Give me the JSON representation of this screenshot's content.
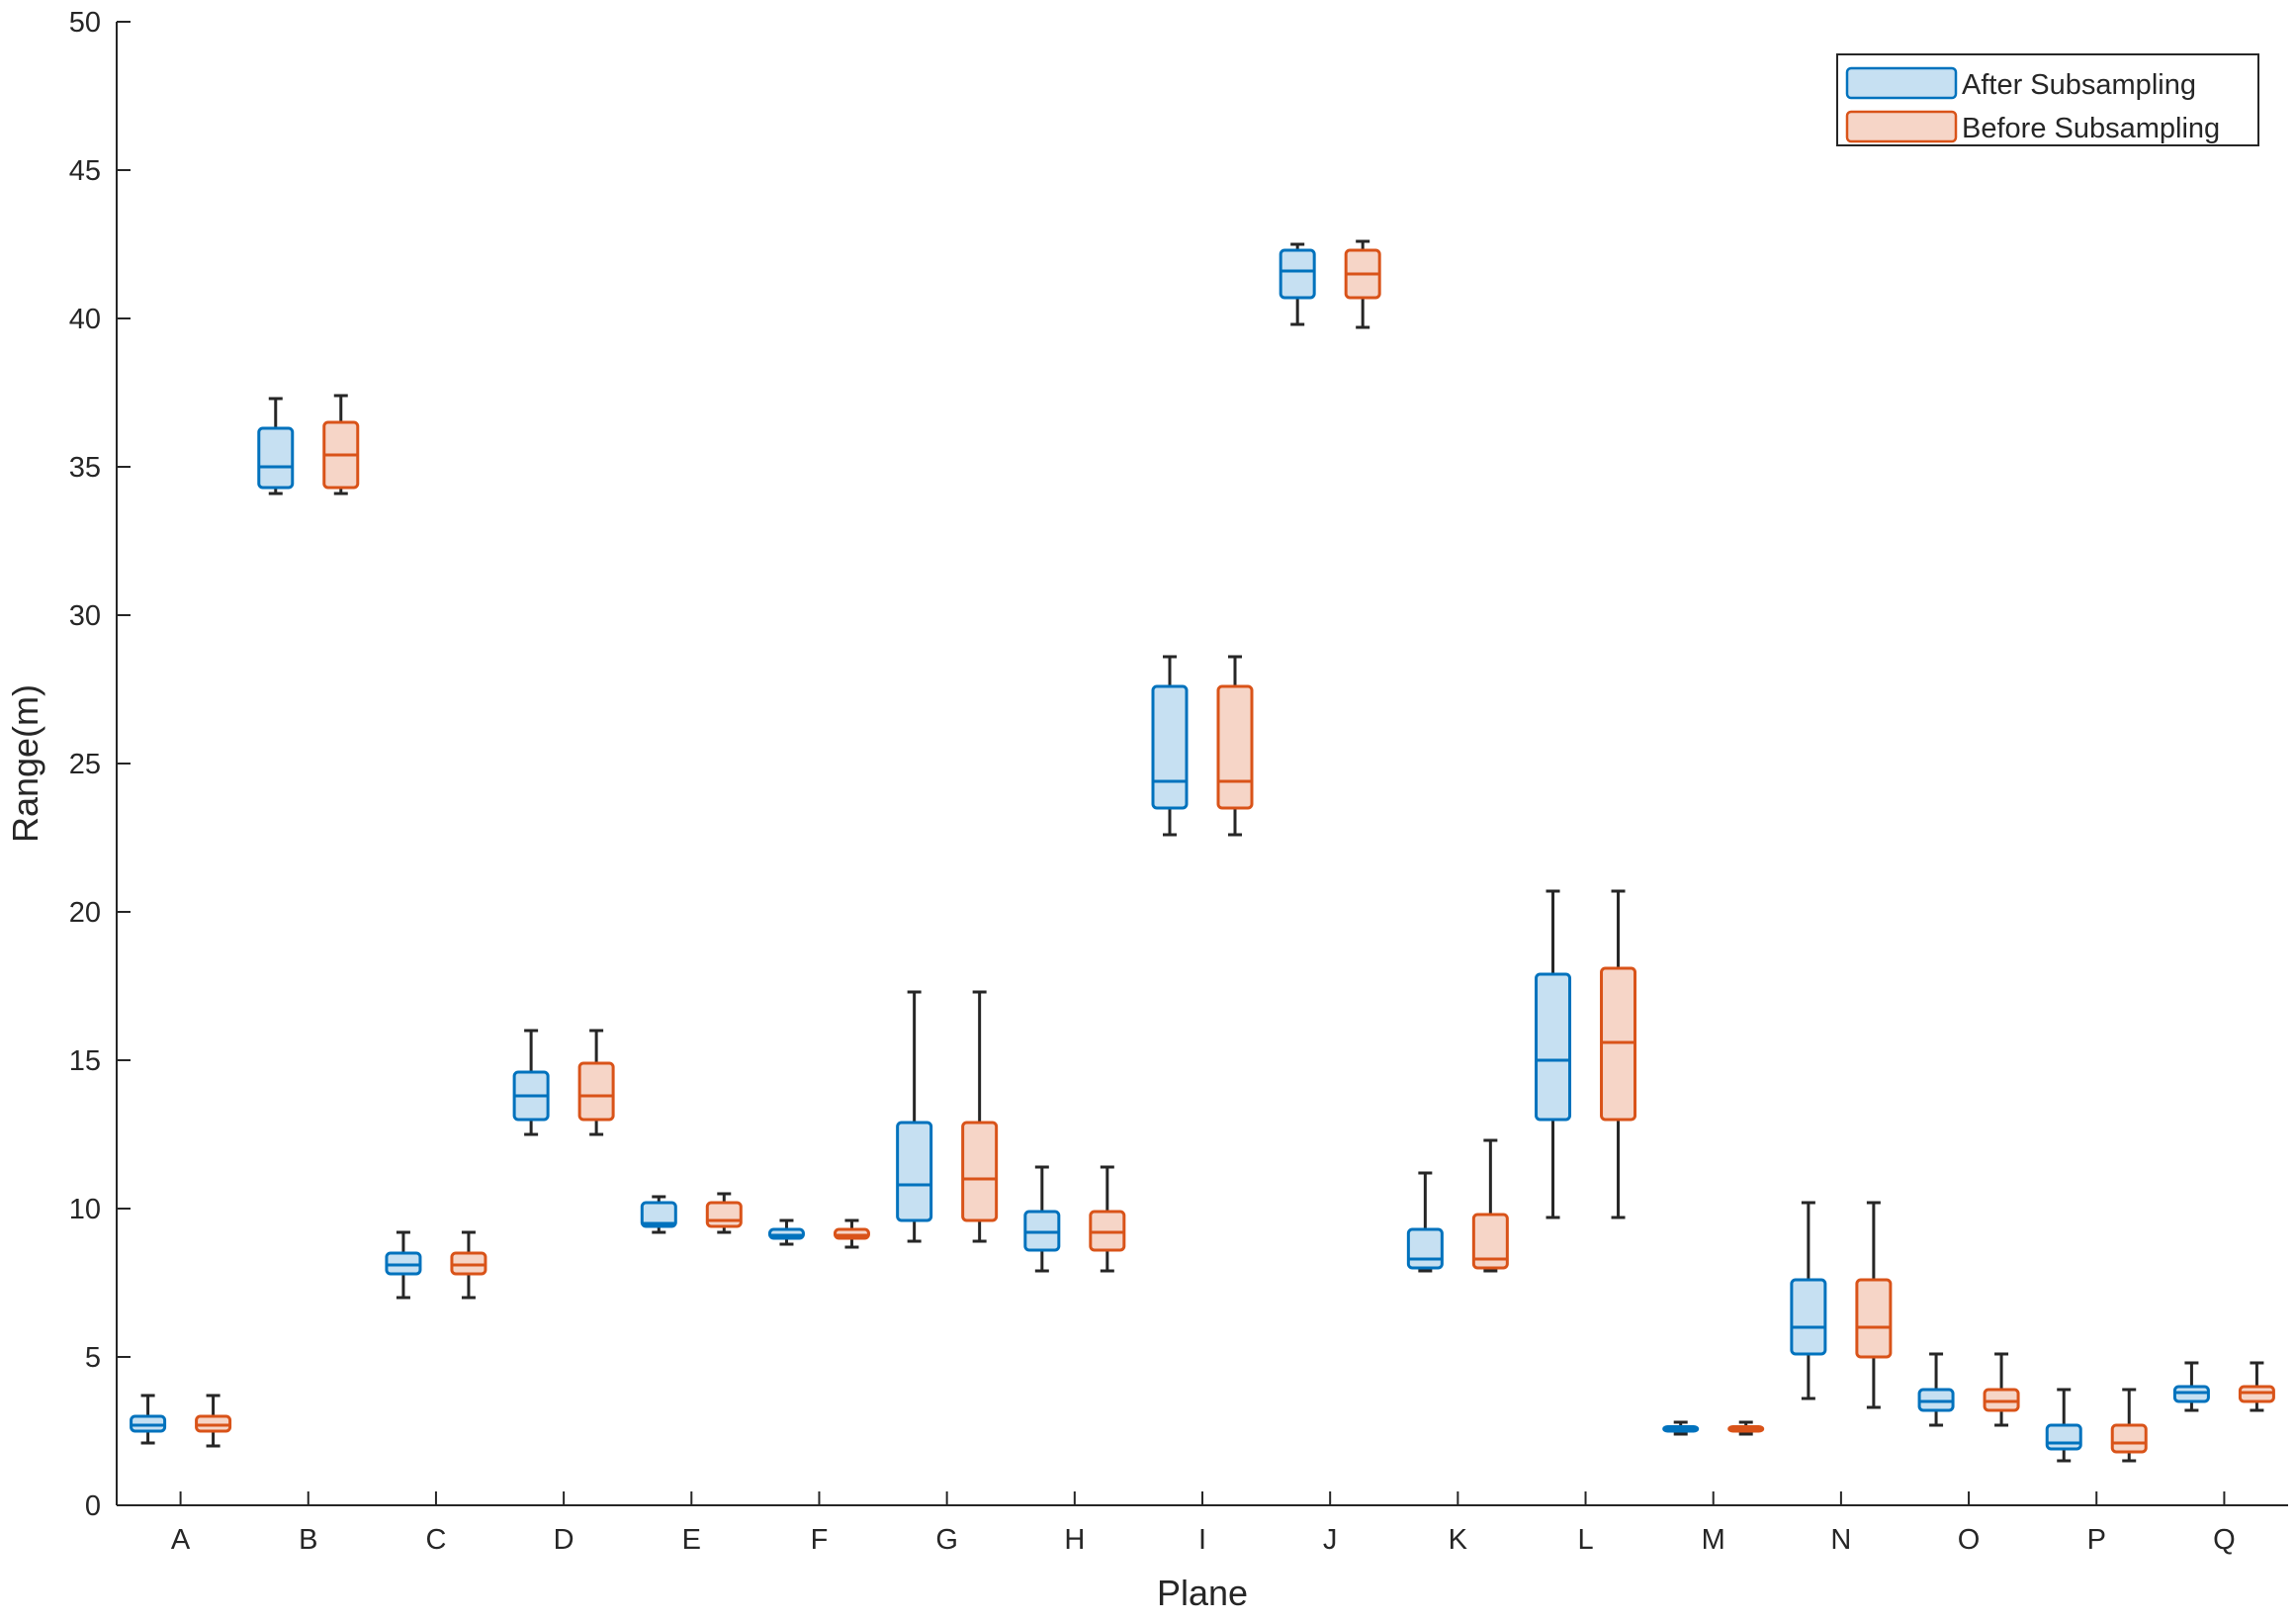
{
  "chart_data": {
    "type": "boxplot",
    "title": "",
    "xlabel": "Plane",
    "ylabel": "Range(m)",
    "ylim": [
      0,
      50
    ],
    "yticks": [
      0,
      5,
      10,
      15,
      20,
      25,
      30,
      35,
      40,
      45,
      50
    ],
    "categories": [
      "A",
      "B",
      "C",
      "D",
      "E",
      "F",
      "G",
      "H",
      "I",
      "J",
      "K",
      "L",
      "M",
      "N",
      "O",
      "P",
      "Q"
    ],
    "legend_position": "top-right",
    "series": [
      {
        "name": "After Subsampling",
        "stroke": "#0072BD",
        "fill": "#C6E0F2",
        "boxes": [
          {
            "min": 2.1,
            "q1": 2.5,
            "median": 2.7,
            "q3": 3.0,
            "max": 3.7
          },
          {
            "min": 34.1,
            "q1": 34.3,
            "median": 35.0,
            "q3": 36.3,
            "max": 37.3
          },
          {
            "min": 7.0,
            "q1": 7.8,
            "median": 8.1,
            "q3": 8.5,
            "max": 9.2
          },
          {
            "min": 12.5,
            "q1": 13.0,
            "median": 13.8,
            "q3": 14.6,
            "max": 16.0
          },
          {
            "min": 9.2,
            "q1": 9.4,
            "median": 9.5,
            "q3": 10.2,
            "max": 10.4
          },
          {
            "min": 8.8,
            "q1": 9.0,
            "median": 9.1,
            "q3": 9.3,
            "max": 9.6
          },
          {
            "min": 8.9,
            "q1": 9.6,
            "median": 10.8,
            "q3": 12.9,
            "max": 17.3
          },
          {
            "min": 7.9,
            "q1": 8.6,
            "median": 9.2,
            "q3": 9.9,
            "max": 11.4
          },
          {
            "min": 22.6,
            "q1": 23.5,
            "median": 24.4,
            "q3": 27.6,
            "max": 28.6
          },
          {
            "min": 39.8,
            "q1": 40.7,
            "median": 41.6,
            "q3": 42.3,
            "max": 42.5
          },
          {
            "min": 7.9,
            "q1": 8.0,
            "median": 8.3,
            "q3": 9.3,
            "max": 11.2
          },
          {
            "min": 9.7,
            "q1": 13.0,
            "median": 15.0,
            "q3": 17.9,
            "max": 20.7
          },
          {
            "min": 2.4,
            "q1": 2.5,
            "median": 2.55,
            "q3": 2.65,
            "max": 2.8
          },
          {
            "min": 3.6,
            "q1": 5.1,
            "median": 6.0,
            "q3": 7.6,
            "max": 10.2
          },
          {
            "min": 2.7,
            "q1": 3.2,
            "median": 3.5,
            "q3": 3.9,
            "max": 5.1
          },
          {
            "min": 1.5,
            "q1": 1.9,
            "median": 2.1,
            "q3": 2.7,
            "max": 3.9
          },
          {
            "min": 3.2,
            "q1": 3.5,
            "median": 3.8,
            "q3": 4.0,
            "max": 4.8
          }
        ]
      },
      {
        "name": "Before Subsampling",
        "stroke": "#D95319",
        "fill": "#F6D5C7",
        "boxes": [
          {
            "min": 2.0,
            "q1": 2.5,
            "median": 2.7,
            "q3": 3.0,
            "max": 3.7
          },
          {
            "min": 34.1,
            "q1": 34.3,
            "median": 35.4,
            "q3": 36.5,
            "max": 37.4
          },
          {
            "min": 7.0,
            "q1": 7.8,
            "median": 8.1,
            "q3": 8.5,
            "max": 9.2
          },
          {
            "min": 12.5,
            "q1": 13.0,
            "median": 13.8,
            "q3": 14.9,
            "max": 16.0
          },
          {
            "min": 9.2,
            "q1": 9.4,
            "median": 9.6,
            "q3": 10.2,
            "max": 10.5
          },
          {
            "min": 8.7,
            "q1": 9.0,
            "median": 9.1,
            "q3": 9.3,
            "max": 9.6
          },
          {
            "min": 8.9,
            "q1": 9.6,
            "median": 11.0,
            "q3": 12.9,
            "max": 17.3
          },
          {
            "min": 7.9,
            "q1": 8.6,
            "median": 9.2,
            "q3": 9.9,
            "max": 11.4
          },
          {
            "min": 22.6,
            "q1": 23.5,
            "median": 24.4,
            "q3": 27.6,
            "max": 28.6
          },
          {
            "min": 39.7,
            "q1": 40.7,
            "median": 41.5,
            "q3": 42.3,
            "max": 42.6
          },
          {
            "min": 7.9,
            "q1": 8.0,
            "median": 8.3,
            "q3": 9.8,
            "max": 12.3
          },
          {
            "min": 9.7,
            "q1": 13.0,
            "median": 15.6,
            "q3": 18.1,
            "max": 20.7
          },
          {
            "min": 2.4,
            "q1": 2.5,
            "median": 2.55,
            "q3": 2.65,
            "max": 2.8
          },
          {
            "min": 3.3,
            "q1": 5.0,
            "median": 6.0,
            "q3": 7.6,
            "max": 10.2
          },
          {
            "min": 2.7,
            "q1": 3.2,
            "median": 3.5,
            "q3": 3.9,
            "max": 5.1
          },
          {
            "min": 1.5,
            "q1": 1.8,
            "median": 2.1,
            "q3": 2.7,
            "max": 3.9
          },
          {
            "min": 3.2,
            "q1": 3.5,
            "median": 3.8,
            "q3": 4.0,
            "max": 4.8
          }
        ]
      }
    ]
  }
}
